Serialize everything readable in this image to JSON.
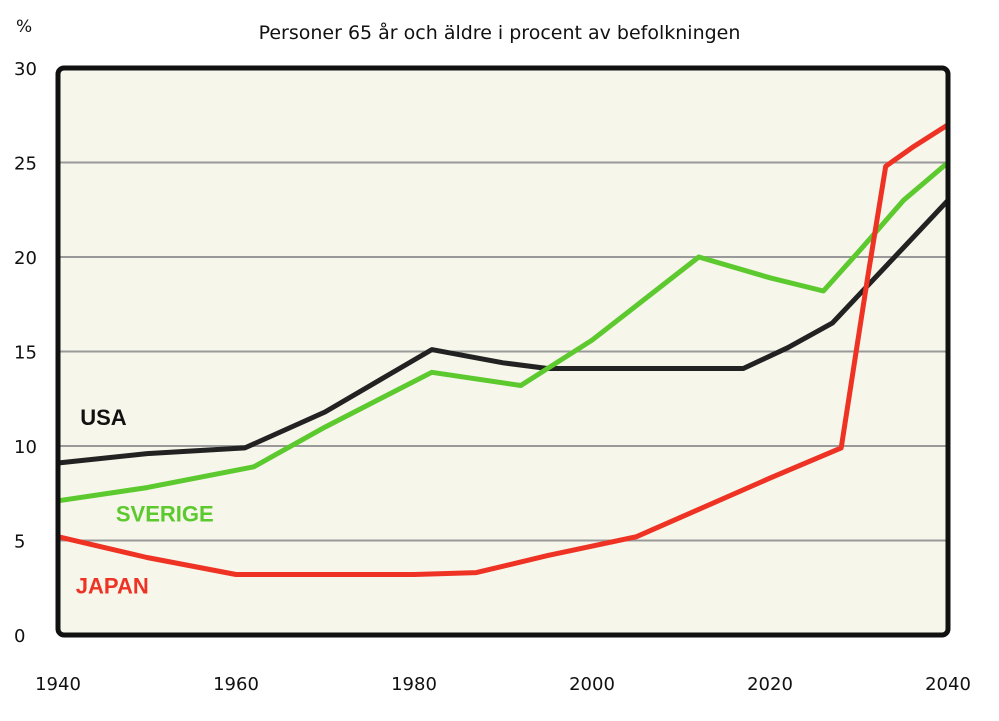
{
  "chart_data": {
    "type": "line",
    "title": "Personer 65 år och äldre i procent av befolkningen",
    "ylabel": "%",
    "xlabel": "",
    "xlim": [
      1940,
      2040
    ],
    "ylim": [
      0,
      30
    ],
    "x_ticks": [
      "1940",
      "1960",
      "1980",
      "2000",
      "2020",
      "2040"
    ],
    "y_ticks": [
      "0",
      "5",
      "10",
      "15",
      "20",
      "25",
      "30"
    ],
    "grid": true,
    "series": [
      {
        "name": "USA",
        "color": "#222222",
        "points": [
          [
            1940,
            9.1
          ],
          [
            1950,
            9.6
          ],
          [
            1961,
            9.9
          ],
          [
            1970,
            11.8
          ],
          [
            1982,
            15.1
          ],
          [
            1990,
            14.4
          ],
          [
            1995,
            14.1
          ],
          [
            2005,
            14.1
          ],
          [
            2017,
            14.1
          ],
          [
            2022,
            15.2
          ],
          [
            2027,
            16.5
          ],
          [
            2030,
            18.0
          ],
          [
            2035,
            20.5
          ],
          [
            2040,
            23.0
          ]
        ]
      },
      {
        "name": "SVERIGE",
        "color": "#5cc92e",
        "points": [
          [
            1940,
            7.1
          ],
          [
            1950,
            7.8
          ],
          [
            1962,
            8.9
          ],
          [
            1970,
            11.0
          ],
          [
            1982,
            13.9
          ],
          [
            1992,
            13.2
          ],
          [
            2000,
            15.6
          ],
          [
            2012,
            20.0
          ],
          [
            2020,
            18.9
          ],
          [
            2026,
            18.2
          ],
          [
            2030,
            20.3
          ],
          [
            2035,
            23.0
          ],
          [
            2040,
            25.0
          ]
        ]
      },
      {
        "name": "JAPAN",
        "color": "#ee3325",
        "points": [
          [
            1940,
            5.2
          ],
          [
            1950,
            4.1
          ],
          [
            1960,
            3.2
          ],
          [
            1970,
            3.2
          ],
          [
            1980,
            3.2
          ],
          [
            1987,
            3.3
          ],
          [
            1995,
            4.2
          ],
          [
            2005,
            5.2
          ],
          [
            2020,
            8.3
          ],
          [
            2028,
            9.9
          ],
          [
            2031,
            19.0
          ],
          [
            2033,
            24.8
          ],
          [
            2036,
            25.8
          ],
          [
            2040,
            27.0
          ]
        ]
      }
    ],
    "colors": {
      "plot_background": "#f6f6ea",
      "grid": "#999999",
      "frame": "#111111"
    }
  }
}
